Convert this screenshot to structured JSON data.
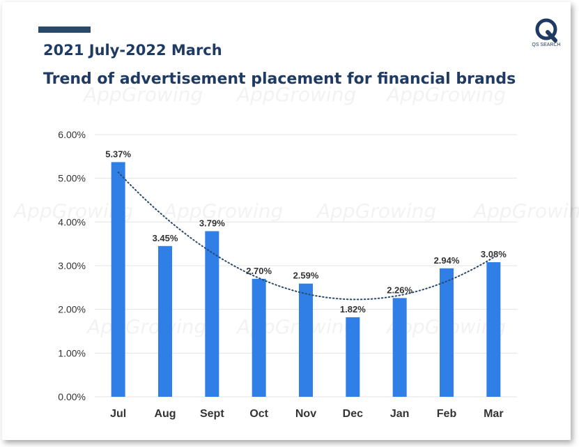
{
  "header": {
    "period": "2021 July-2022 March",
    "logo_text": "QS SEARCH",
    "watermark": "AppGrowing"
  },
  "chart_data": {
    "type": "bar",
    "title": "Trend of advertisement placement for financial brands",
    "categories": [
      "Jul",
      "Aug",
      "Sept",
      "Oct",
      "Nov",
      "Dec",
      "Jan",
      "Feb",
      "Mar"
    ],
    "values": [
      5.37,
      3.45,
      3.79,
      2.7,
      2.59,
      1.82,
      2.26,
      2.94,
      3.08
    ],
    "value_labels": [
      "5.37%",
      "3.45%",
      "3.79%",
      "2.70%",
      "2.59%",
      "1.82%",
      "2.26%",
      "2.94%",
      "3.08%"
    ],
    "y_ticks": [
      "0.00%",
      "1.00%",
      "2.00%",
      "3.00%",
      "4.00%",
      "5.00%",
      "6.00%"
    ],
    "ylim": [
      0,
      6
    ],
    "grid": true,
    "trendline": "polynomial, dotted",
    "colors": {
      "bar": "#2f7fe6",
      "title": "#1f3b63",
      "trend": "#2b4a6b",
      "grid": "#e3e3e3"
    }
  }
}
